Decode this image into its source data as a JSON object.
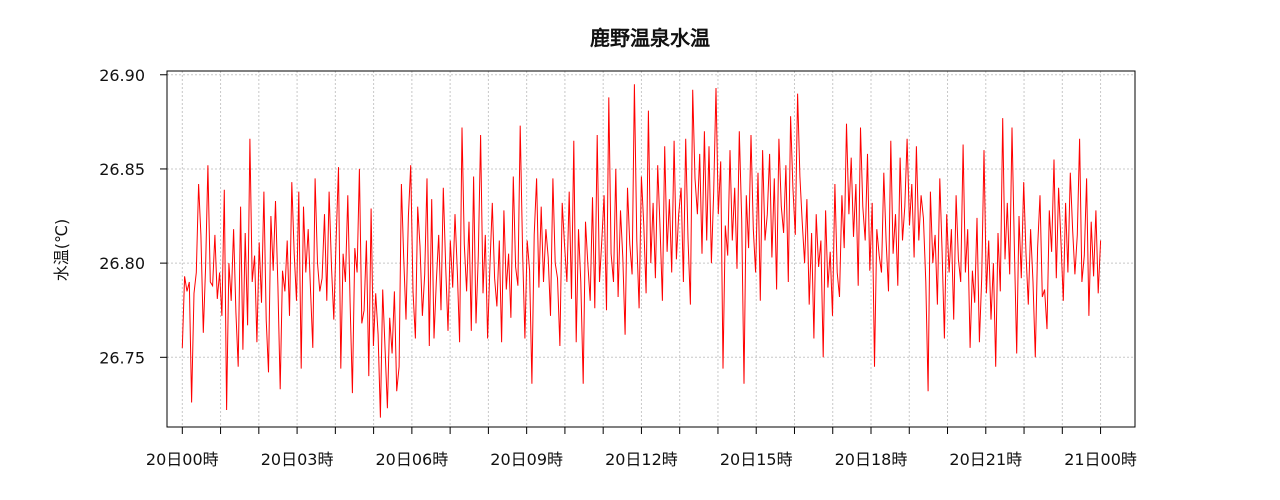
{
  "chart_data": {
    "type": "line",
    "title": "鹿野温泉水温",
    "xlabel": "",
    "ylabel": "水温(℃)",
    "ylim": [
      26.713,
      26.902
    ],
    "y_ticks": [
      26.75,
      26.8,
      26.85,
      26.9
    ],
    "y_tick_labels": [
      "26.75",
      "26.80",
      "26.85",
      "26.90"
    ],
    "x_range_hours": [
      -0.4,
      24.9
    ],
    "x_ticks_hours": [
      0,
      3,
      6,
      9,
      12,
      15,
      18,
      21,
      24
    ],
    "x_tick_labels": [
      "20日00時",
      "20日03時",
      "20日06時",
      "20日09時",
      "20日12時",
      "20日15時",
      "20日18時",
      "20日21時",
      "21日00時"
    ],
    "x_minor_ticks_hours": [
      1,
      2,
      4,
      5,
      7,
      8,
      10,
      11,
      13,
      14,
      16,
      17,
      19,
      20,
      22,
      23
    ],
    "grid": true,
    "grid_style": "dotted",
    "line_color": "#ff0000",
    "series": [
      {
        "name": "",
        "x_start_hour": 0,
        "x_end_hour": 24,
        "values": [
          26.755,
          26.793,
          26.785,
          26.79,
          26.726,
          26.784,
          26.795,
          26.842,
          26.815,
          26.763,
          26.798,
          26.852,
          26.79,
          26.788,
          26.815,
          26.781,
          26.795,
          26.772,
          26.839,
          26.722,
          26.8,
          26.78,
          26.818,
          26.774,
          26.745,
          26.83,
          26.754,
          26.816,
          26.767,
          26.866,
          26.79,
          26.804,
          26.758,
          26.811,
          26.779,
          26.838,
          26.77,
          26.742,
          26.825,
          26.796,
          26.833,
          26.788,
          26.733,
          26.796,
          26.785,
          26.812,
          26.772,
          26.843,
          26.805,
          26.78,
          26.838,
          26.744,
          26.83,
          26.795,
          26.818,
          26.786,
          26.755,
          26.845,
          26.8,
          26.785,
          26.792,
          26.826,
          26.78,
          26.838,
          26.798,
          26.77,
          26.812,
          26.851,
          26.744,
          26.805,
          26.79,
          26.836,
          26.779,
          26.731,
          26.808,
          26.795,
          26.85,
          26.768,
          26.775,
          26.812,
          26.74,
          26.829,
          26.756,
          26.784,
          26.762,
          26.718,
          26.786,
          26.754,
          26.723,
          26.771,
          26.752,
          26.785,
          26.732,
          26.745,
          26.842,
          26.803,
          26.77,
          26.825,
          26.852,
          26.785,
          26.76,
          26.83,
          26.809,
          26.772,
          26.794,
          26.845,
          26.756,
          26.834,
          26.76,
          26.79,
          26.815,
          26.775,
          26.84,
          26.798,
          26.764,
          26.812,
          26.787,
          26.826,
          26.796,
          26.758,
          26.872,
          26.81,
          26.785,
          26.822,
          26.764,
          26.846,
          26.768,
          26.804,
          26.868,
          26.784,
          26.815,
          26.76,
          26.798,
          26.832,
          26.792,
          26.777,
          26.812,
          26.758,
          26.828,
          26.786,
          26.805,
          26.771,
          26.846,
          26.798,
          26.788,
          26.873,
          26.806,
          26.76,
          26.812,
          26.796,
          26.736,
          26.815,
          26.845,
          26.787,
          26.83,
          26.79,
          26.818,
          26.803,
          26.772,
          26.845,
          26.8,
          26.792,
          26.756,
          26.832,
          26.81,
          26.79,
          26.838,
          26.781,
          26.865,
          26.758,
          26.818,
          26.79,
          26.736,
          26.822,
          26.8,
          26.78,
          26.835,
          26.776,
          26.868,
          26.79,
          26.812,
          26.836,
          26.775,
          26.888,
          26.805,
          26.79,
          26.85,
          26.782,
          26.828,
          26.803,
          26.762,
          26.84,
          26.81,
          26.794,
          26.895,
          26.812,
          26.776,
          26.846,
          26.82,
          26.784,
          26.881,
          26.8,
          26.832,
          26.792,
          26.852,
          26.818,
          26.78,
          26.862,
          26.806,
          26.834,
          26.795,
          26.865,
          26.802,
          26.826,
          26.84,
          26.79,
          26.866,
          26.813,
          26.778,
          26.892,
          26.845,
          26.826,
          26.858,
          26.805,
          26.87,
          26.812,
          26.862,
          26.8,
          26.838,
          26.893,
          26.826,
          26.854,
          26.744,
          26.82,
          26.804,
          26.86,
          26.812,
          26.84,
          26.797,
          26.87,
          26.823,
          26.736,
          26.836,
          26.808,
          26.868,
          26.818,
          26.795,
          26.848,
          26.78,
          26.86,
          26.812,
          26.826,
          26.858,
          26.803,
          26.845,
          26.786,
          26.866,
          26.83,
          26.816,
          26.852,
          26.79,
          26.878,
          26.84,
          26.815,
          26.89,
          26.846,
          26.822,
          26.8,
          26.834,
          26.778,
          26.816,
          26.76,
          26.826,
          26.798,
          26.812,
          26.75,
          26.828,
          26.787,
          26.806,
          26.772,
          26.842,
          26.795,
          26.782,
          26.836,
          26.808,
          26.874,
          26.826,
          26.856,
          26.814,
          26.842,
          26.788,
          26.872,
          26.83,
          26.812,
          26.858,
          26.796,
          26.832,
          26.745,
          26.818,
          26.804,
          26.795,
          26.848,
          26.812,
          26.785,
          26.865,
          26.805,
          26.826,
          26.788,
          26.856,
          26.812,
          26.83,
          26.866,
          26.82,
          26.842,
          26.803,
          26.862,
          26.812,
          26.836,
          26.824,
          26.79,
          26.732,
          26.838,
          26.8,
          26.815,
          26.778,
          26.845,
          26.806,
          26.76,
          26.826,
          26.795,
          26.818,
          26.77,
          26.836,
          26.802,
          26.79,
          26.863,
          26.795,
          26.818,
          26.755,
          26.796,
          26.779,
          26.824,
          26.758,
          26.792,
          26.86,
          26.784,
          26.812,
          26.77,
          26.8,
          26.745,
          26.816,
          26.785,
          26.877,
          26.802,
          26.832,
          26.794,
          26.872,
          26.81,
          26.752,
          26.825,
          26.792,
          26.843,
          26.805,
          26.778,
          26.818,
          26.79,
          26.75,
          26.808,
          26.836,
          26.782,
          26.786,
          26.765,
          26.828,
          26.806,
          26.855,
          26.792,
          26.84,
          26.812,
          26.78,
          26.832,
          26.795,
          26.848,
          26.818,
          26.794,
          26.815,
          26.866,
          26.79,
          26.804,
          26.845,
          26.772,
          26.822,
          26.793,
          26.828,
          26.784,
          26.812
        ]
      }
    ]
  }
}
